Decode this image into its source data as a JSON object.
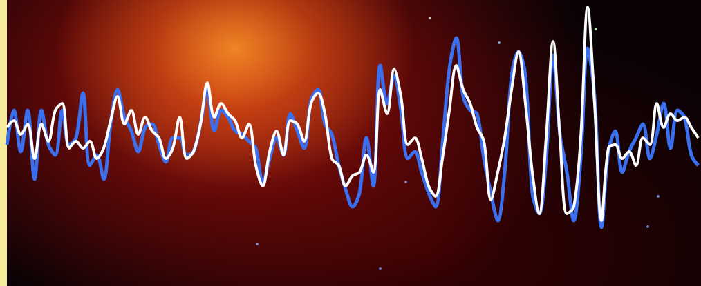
{
  "chart_data": {
    "type": "line",
    "marker": "none",
    "line_style": "solid",
    "grid": false,
    "tick_labels": false,
    "xlim": [
      0,
      1000
    ],
    "ylim": [
      -208,
      207
    ],
    "x": [
      0,
      10,
      20,
      30,
      40,
      50,
      60,
      70,
      80,
      90,
      100,
      110,
      120,
      130,
      140,
      150,
      160,
      170,
      180,
      190,
      200,
      210,
      220,
      230,
      240,
      250,
      260,
      270,
      280,
      290,
      300,
      310,
      320,
      330,
      340,
      350,
      360,
      370,
      380,
      390,
      400,
      410,
      420,
      430,
      440,
      450,
      460,
      470,
      480,
      490,
      500,
      510,
      520,
      530,
      540,
      550,
      560,
      570,
      580,
      590,
      600,
      610,
      620,
      630,
      640,
      650,
      660,
      670,
      680,
      690,
      700,
      710,
      720,
      730,
      740,
      750,
      760,
      770,
      780,
      790,
      800,
      810,
      820,
      830,
      840,
      850,
      860,
      870,
      880,
      890,
      900,
      910,
      920,
      930,
      940,
      950,
      960,
      970,
      980,
      990,
      1000
    ],
    "series": [
      {
        "color": "#3a6ff0",
        "values": [
          -3,
          47,
          -13,
          47,
          -53,
          47,
          -3,
          -18,
          47,
          -3,
          7,
          72,
          -33,
          -18,
          -53,
          27,
          77,
          37,
          17,
          -13,
          22,
          27,
          -3,
          -28,
          7,
          7,
          -18,
          -13,
          27,
          77,
          17,
          47,
          37,
          17,
          12,
          2,
          -8,
          -58,
          -23,
          7,
          -18,
          42,
          17,
          -8,
          62,
          77,
          27,
          12,
          -33,
          -68,
          -93,
          -73,
          7,
          -63,
          112,
          57,
          97,
          47,
          -23,
          -13,
          -43,
          -73,
          -93,
          -3,
          107,
          152,
          67,
          47,
          42,
          -23,
          -73,
          -113,
          -43,
          97,
          132,
          97,
          -73,
          -103,
          -23,
          127,
          12,
          -43,
          -113,
          -23,
          137,
          67,
          -123,
          -13,
          17,
          -43,
          -13,
          7,
          27,
          -23,
          12,
          57,
          -8,
          47,
          37,
          -18,
          -33
        ]
      },
      {
        "color": "#ffffff",
        "values": [
          22,
          32,
          12,
          27,
          -23,
          27,
          2,
          47,
          57,
          -8,
          2,
          -8,
          2,
          -23,
          -8,
          32,
          67,
          27,
          47,
          12,
          37,
          17,
          7,
          -23,
          -8,
          37,
          -23,
          -13,
          27,
          87,
          37,
          57,
          42,
          32,
          7,
          27,
          -33,
          -63,
          -13,
          17,
          -18,
          32,
          27,
          2,
          57,
          72,
          42,
          -23,
          -33,
          -63,
          -48,
          -43,
          -18,
          -43,
          77,
          42,
          107,
          67,
          -3,
          7,
          -23,
          -63,
          -78,
          -23,
          47,
          112,
          77,
          57,
          22,
          2,
          -83,
          -43,
          7,
          77,
          132,
          57,
          -43,
          -103,
          7,
          147,
          7,
          -103,
          -93,
          7,
          197,
          57,
          -113,
          -8,
          -3,
          -23,
          -13,
          -33,
          7,
          -3,
          57,
          22,
          42,
          32,
          37,
          22,
          7
        ]
      }
    ]
  }
}
